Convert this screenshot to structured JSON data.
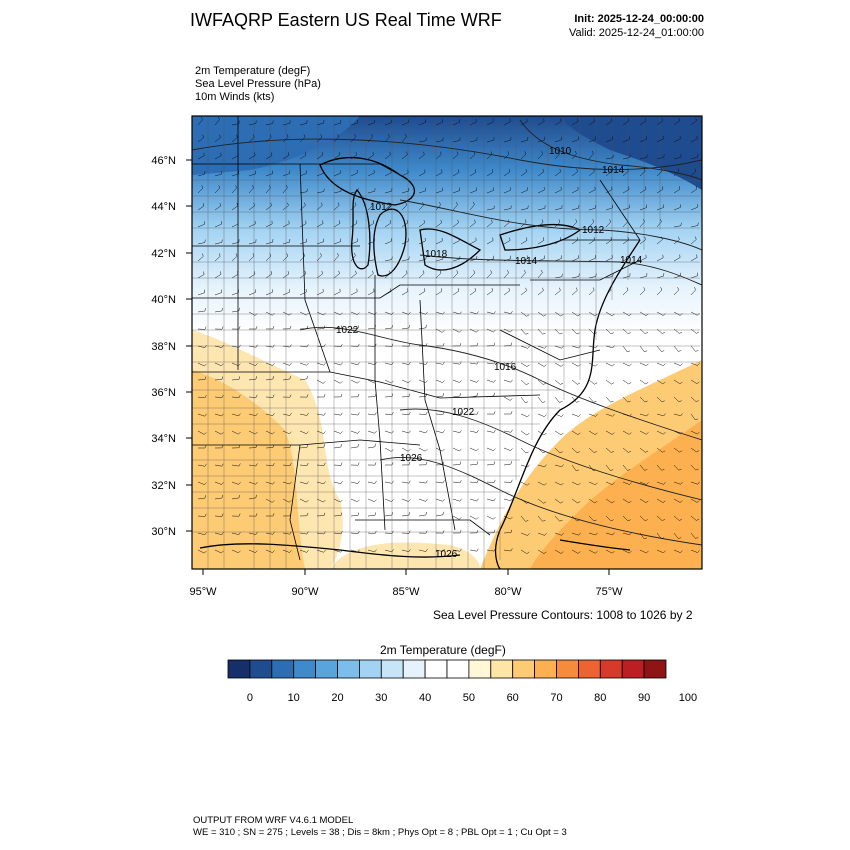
{
  "header": {
    "title": "IWFAQRP Eastern US Real Time WRF",
    "init": "Init: 2025-12-24_00:00:00",
    "valid": "Valid: 2025-12-24_01:00:00"
  },
  "fields": [
    "2m Temperature   (degF)",
    "Sea Level Pressure   (hPa)",
    "10m Winds   (kts)"
  ],
  "map": {
    "lat_labels": [
      "46°N",
      "44°N",
      "42°N",
      "40°N",
      "38°N",
      "36°N",
      "34°N",
      "32°N",
      "30°N"
    ],
    "lon_labels": [
      "95°W",
      "90°W",
      "85°W",
      "80°W",
      "75°W"
    ],
    "pressure_labels": [
      "1010",
      "1014",
      "1012",
      "1014",
      "1018",
      "1014",
      "1012",
      "1022",
      "1016",
      "1022",
      "1026",
      "1026"
    ],
    "contour_note": "Sea Level Pressure Contours: 1008 to 1026 by 2"
  },
  "colorbar": {
    "title": "2m Temperature  (degF)",
    "colors": [
      "#162f6b",
      "#1f4b8f",
      "#2c6db3",
      "#3f8acb",
      "#5aa4dc",
      "#7dbde9",
      "#a3d3f3",
      "#c8e5f8",
      "#e6f3fc",
      "#ffffff",
      "#ffffff",
      "#fff7d6",
      "#ffe6a6",
      "#fecb75",
      "#fdb04f",
      "#f68b3c",
      "#ec6431",
      "#d73a2b",
      "#bb1f24",
      "#8f1416"
    ],
    "tick_labels": [
      "0",
      "10",
      "20",
      "30",
      "40",
      "50",
      "60",
      "70",
      "80",
      "90",
      "100"
    ]
  },
  "footer": {
    "line1": "OUTPUT FROM WRF V4.6.1 MODEL",
    "line2": "WE = 310 ; SN = 275 ; Levels = 38 ; Dis = 8km ; Phys Opt = 8 ; PBL Opt = 1 ; Cu Opt = 3"
  }
}
